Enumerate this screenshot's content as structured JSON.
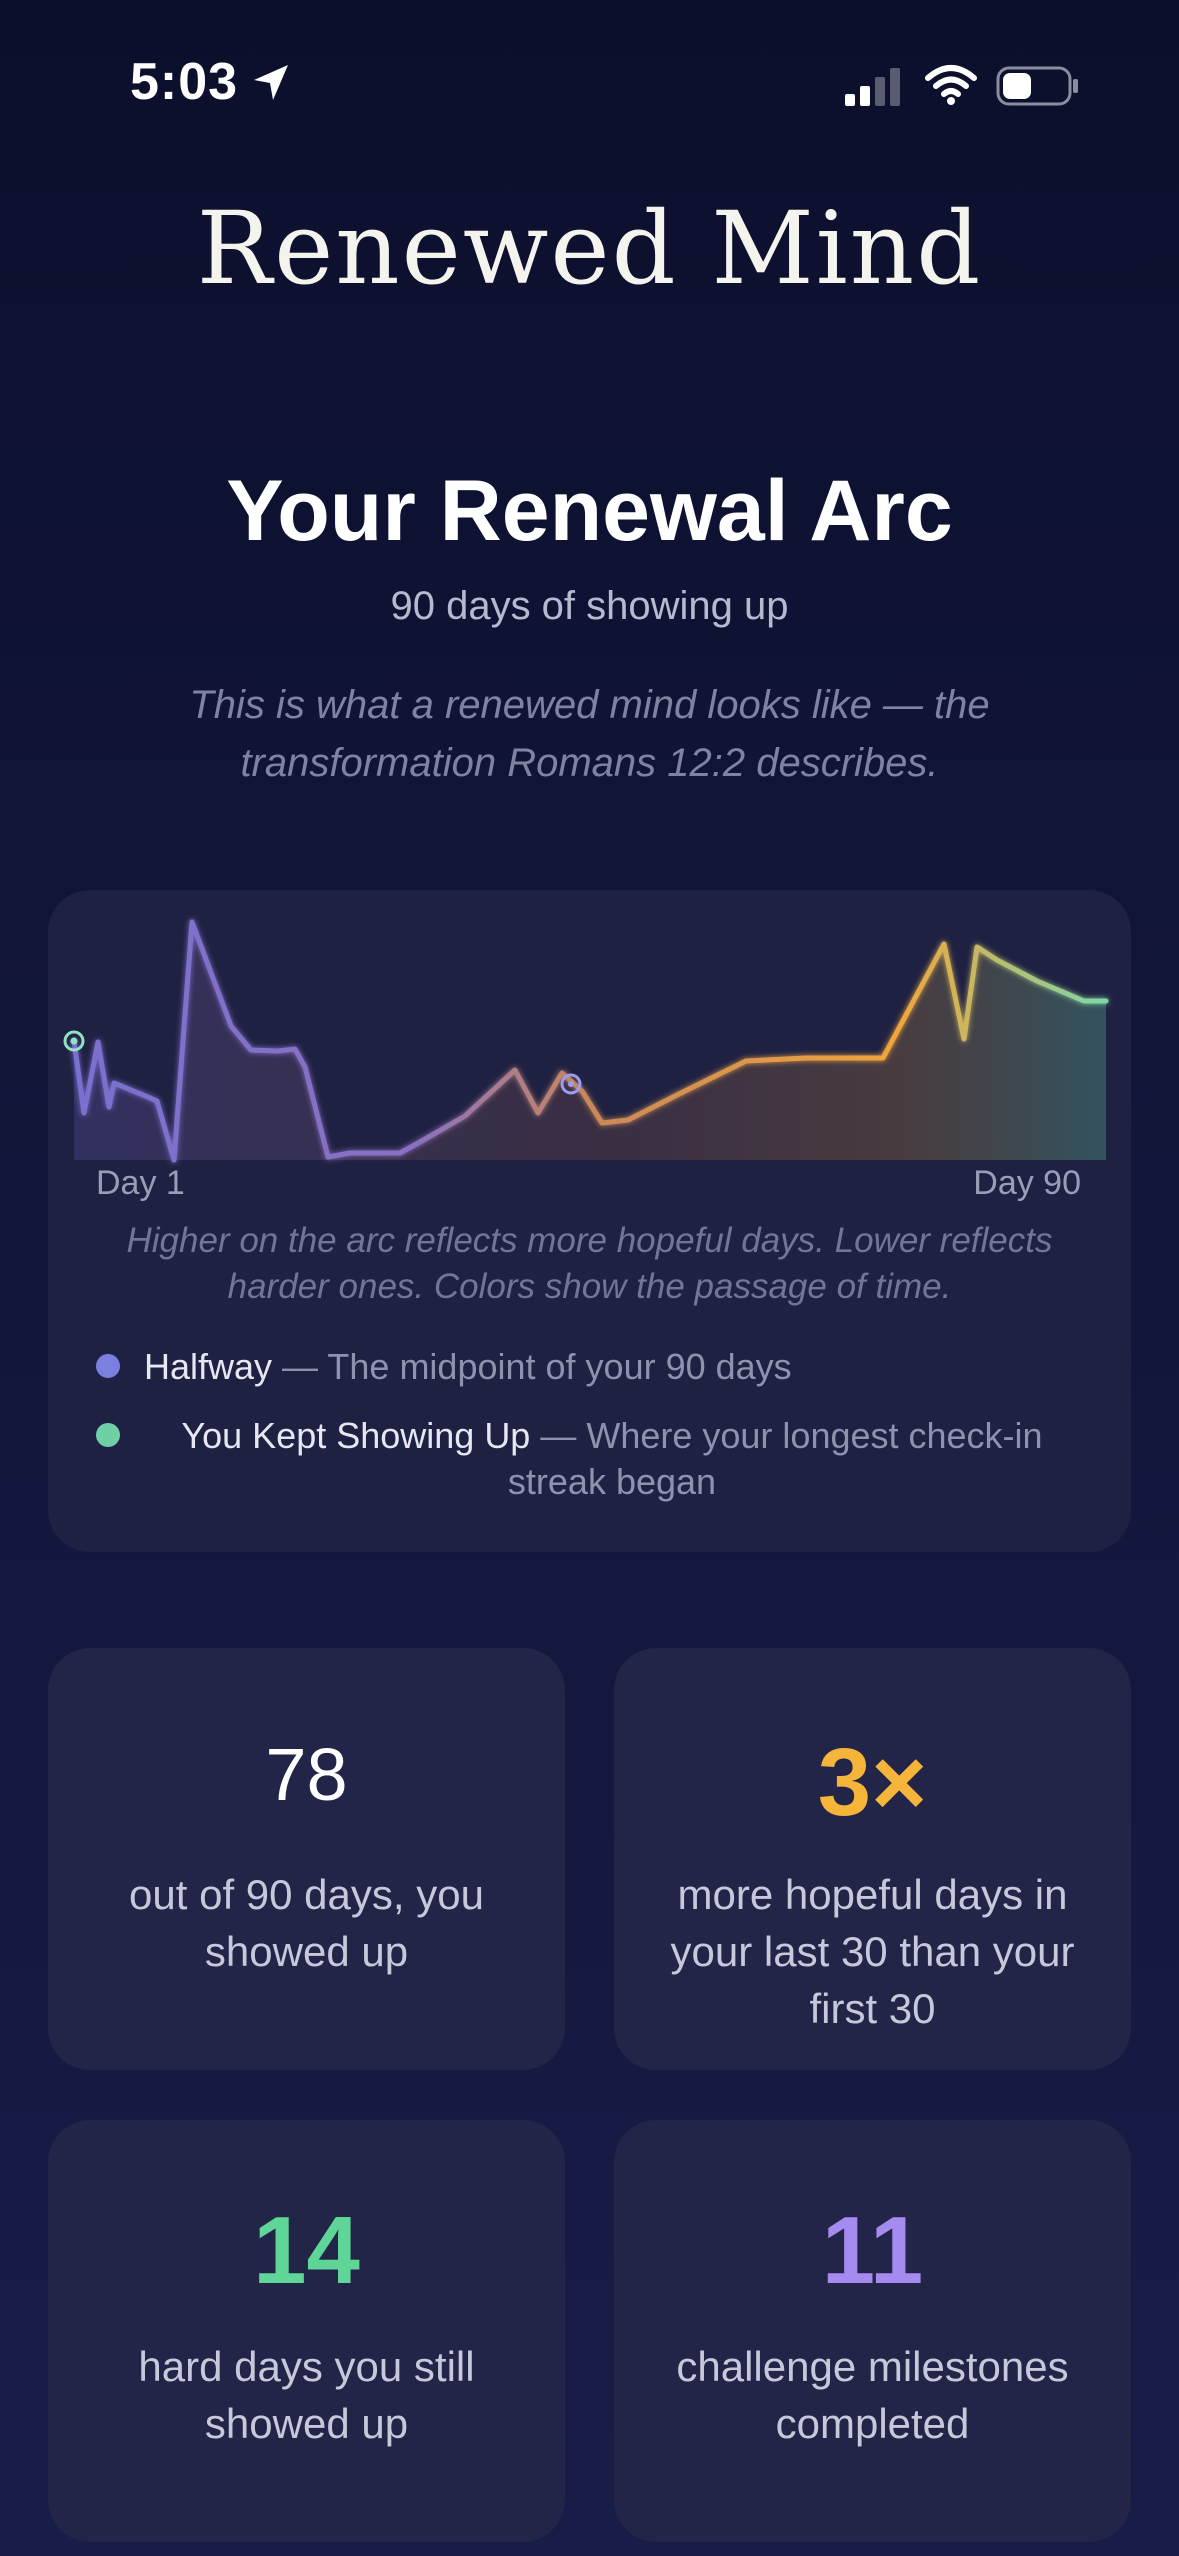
{
  "status_bar": {
    "time": "5:03"
  },
  "app": {
    "title": "Renewed Mind"
  },
  "page": {
    "heading": "Your Renewal Arc",
    "subheading": "90 days of showing up",
    "quote": "This is what a renewed mind looks like — the transformation Romans 12:2 describes."
  },
  "arc": {
    "axis_start": "Day 1",
    "axis_end": "Day 90",
    "caption": "Higher on the arc reflects more hopeful days. Lower reflects harder ones. Colors show the passage of time.",
    "legend": [
      {
        "title": "Halfway",
        "desc": "The midpoint of your 90 days",
        "color": "#7b7fe0"
      },
      {
        "title": "You Kept Showing Up",
        "desc": "Where your longest check-in streak began",
        "color": "#6fd0a6"
      }
    ],
    "gradient_colors": [
      "#7a6fd0",
      "#c69a5a",
      "#f0a53b",
      "#7fd8a8"
    ]
  },
  "stats": [
    {
      "value": "78",
      "label": "out of 90 days, you showed up",
      "color": "#ffffff"
    },
    {
      "value": "3×",
      "label": "more hopeful days in your last 30 than your first 30",
      "color": "#f5b53a"
    },
    {
      "value": "14",
      "label": "hard days you still showed up",
      "color": "#5fd597"
    },
    {
      "value": "11",
      "label": "challenge milestones completed",
      "color": "#a58bf0"
    }
  ]
}
